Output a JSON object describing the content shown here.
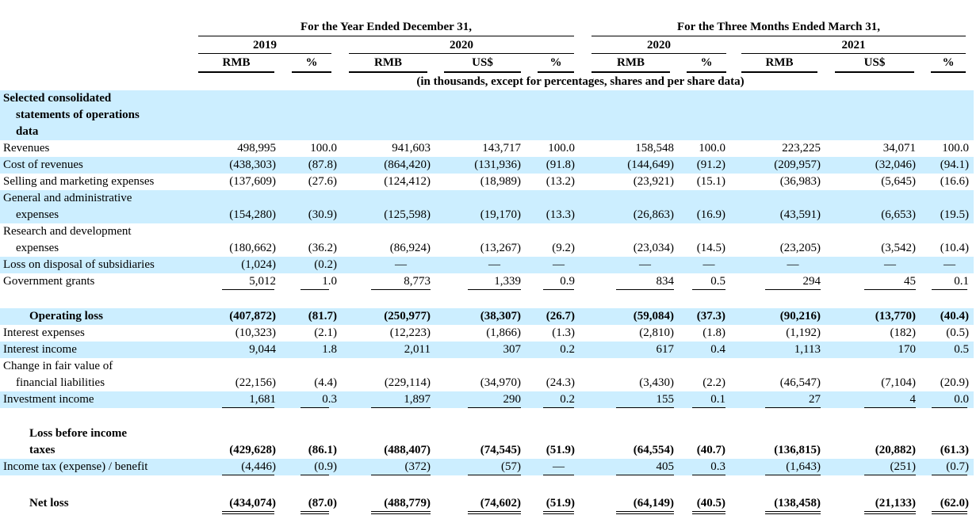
{
  "header": {
    "year_group": "For the Year Ended December 31,",
    "quarter_group": "For the Three Months Ended March 31,",
    "years": [
      "2019",
      "2020",
      "2020",
      "2021"
    ],
    "columns": [
      "RMB",
      "%",
      "RMB",
      "US$",
      "%",
      "RMB",
      "%",
      "RMB",
      "US$",
      "%"
    ],
    "units_note": "(in thousands, except for percentages, shares and per share data)"
  },
  "section_title": {
    "line1": "Selected consolidated",
    "line2": "statements of operations",
    "line3": "data"
  },
  "rows": [
    {
      "label": [
        "Revenues"
      ],
      "values": [
        "498,995",
        "100.0",
        "941,603",
        "143,717",
        "100.0",
        "158,548",
        "100.0",
        "223,225",
        "34,071",
        "100.0"
      ]
    },
    {
      "label": [
        "Cost of revenues"
      ],
      "values": [
        "(438,303)",
        "(87.8)",
        "(864,420)",
        "(131,936)",
        "(91.8)",
        "(144,649)",
        "(91.2)",
        "(209,957)",
        "(32,046)",
        "(94.1)"
      ]
    },
    {
      "label": [
        "Selling and marketing expenses"
      ],
      "values": [
        "(137,609)",
        "(27.6)",
        "(124,412)",
        "(18,989)",
        "(13.2)",
        "(23,921)",
        "(15.1)",
        "(36,983)",
        "(5,645)",
        "(16.6)"
      ]
    },
    {
      "label": [
        "General and administrative",
        "expenses"
      ],
      "values": [
        "(154,280)",
        "(30.9)",
        "(125,598)",
        "(19,170)",
        "(13.3)",
        "(26,863)",
        "(16.9)",
        "(43,591)",
        "(6,653)",
        "(19.5)"
      ]
    },
    {
      "label": [
        "Research and development",
        "expenses"
      ],
      "values": [
        "(180,662)",
        "(36.2)",
        "(86,924)",
        "(13,267)",
        "(9.2)",
        "(23,034)",
        "(14.5)",
        "(23,205)",
        "(3,542)",
        "(10.4)"
      ]
    },
    {
      "label": [
        "Loss on disposal of subsidiaries"
      ],
      "values": [
        "(1,024)",
        "(0.2)",
        "—",
        "—",
        "—",
        "—",
        "—",
        "—",
        "—",
        "—"
      ]
    },
    {
      "label": [
        "Government grants"
      ],
      "values": [
        "5,012",
        "1.0",
        "8,773",
        "1,339",
        "0.9",
        "834",
        "0.5",
        "294",
        "45",
        "0.1"
      ]
    },
    {
      "label": [
        "Operating loss"
      ],
      "values": [
        "(407,872)",
        "(81.7)",
        "(250,977)",
        "(38,307)",
        "(26.7)",
        "(59,084)",
        "(37.3)",
        "(90,216)",
        "(13,770)",
        "(40.4)"
      ]
    },
    {
      "label": [
        "Interest expenses"
      ],
      "values": [
        "(10,323)",
        "(2.1)",
        "(12,223)",
        "(1,866)",
        "(1.3)",
        "(2,810)",
        "(1.8)",
        "(1,192)",
        "(182)",
        "(0.5)"
      ]
    },
    {
      "label": [
        "Interest income"
      ],
      "values": [
        "9,044",
        "1.8",
        "2,011",
        "307",
        "0.2",
        "617",
        "0.4",
        "1,113",
        "170",
        "0.5"
      ]
    },
    {
      "label": [
        "Change in fair value of",
        "financial liabilities"
      ],
      "values": [
        "(22,156)",
        "(4.4)",
        "(229,114)",
        "(34,970)",
        "(24.3)",
        "(3,430)",
        "(2.2)",
        "(46,547)",
        "(7,104)",
        "(20.9)"
      ]
    },
    {
      "label": [
        "Investment income"
      ],
      "values": [
        "1,681",
        "0.3",
        "1,897",
        "290",
        "0.2",
        "155",
        "0.1",
        "27",
        "4",
        "0.0"
      ]
    },
    {
      "label": [
        "Loss before income",
        "taxes"
      ],
      "values": [
        "(429,628)",
        "(86.1)",
        "(488,407)",
        "(74,545)",
        "(51.9)",
        "(64,554)",
        "(40.7)",
        "(136,815)",
        "(20,882)",
        "(61.3)"
      ]
    },
    {
      "label": [
        "Income tax (expense) / benefit"
      ],
      "values": [
        "(4,446)",
        "(0.9)",
        "(372)",
        "(57)",
        "—",
        "405",
        "0.3",
        "(1,643)",
        "(251)",
        "(0.7)"
      ]
    },
    {
      "label": [
        "Net loss"
      ],
      "values": [
        "(434,074)",
        "(87.0)",
        "(488,779)",
        "(74,602)",
        "(51.9)",
        "(64,149)",
        "(40.5)",
        "(138,458)",
        "(21,133)",
        "(62.0)"
      ]
    }
  ]
}
